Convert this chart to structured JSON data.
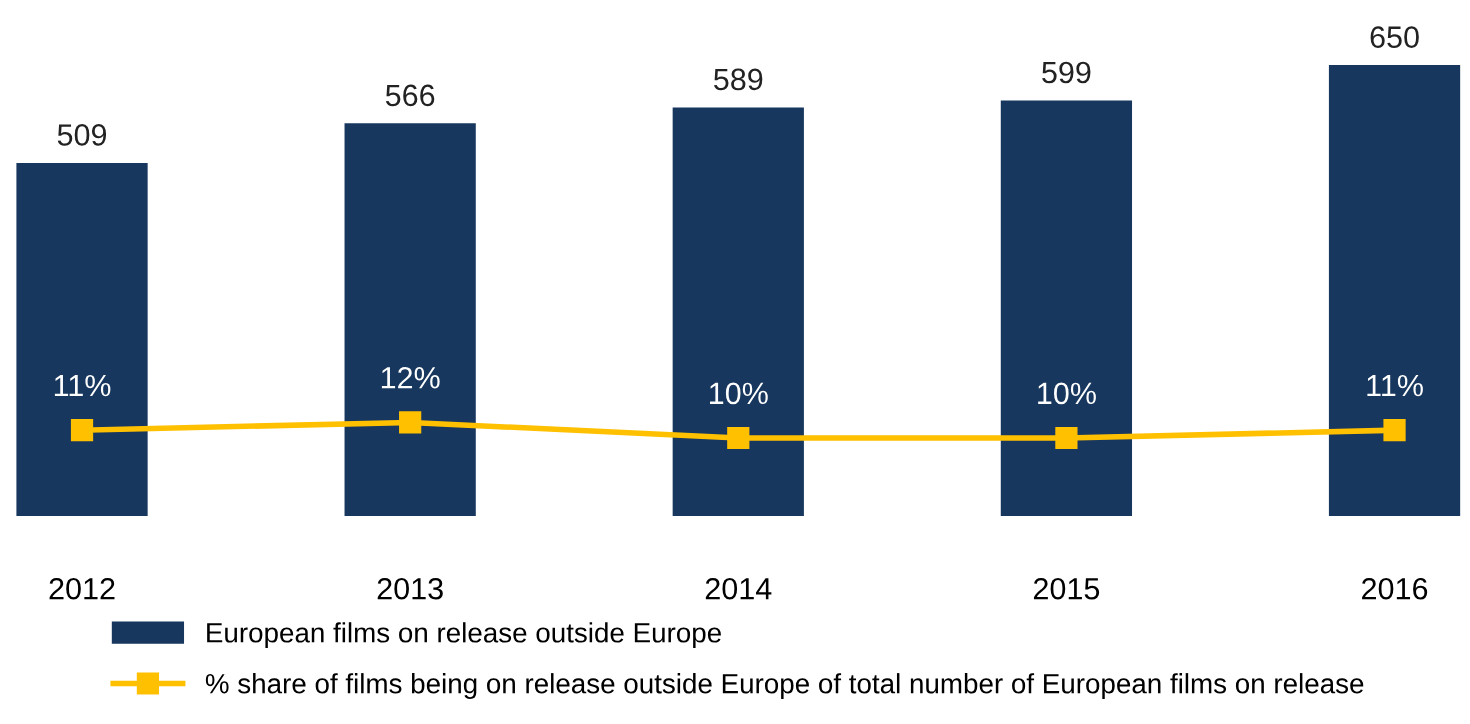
{
  "chart_data": {
    "type": "bar",
    "categories": [
      "2012",
      "2013",
      "2014",
      "2015",
      "2016"
    ],
    "series": [
      {
        "name": "European films on release outside Europe",
        "color": "#17375e",
        "values": [
          509,
          566,
          589,
          599,
          650
        ],
        "value_labels": [
          "509",
          "566",
          "589",
          "599",
          "650"
        ]
      },
      {
        "name": "% share of films being on release outside Europe of total number of European films on release",
        "type": "line",
        "axis": "y2",
        "color": "#ffc000",
        "marker": "square",
        "values": [
          11,
          12,
          10,
          10,
          11
        ],
        "value_labels": [
          "11%",
          "12%",
          "10%",
          "10%",
          "11%"
        ]
      }
    ],
    "grid": false,
    "legend": "bottom left",
    "tick_labels": "x"
  }
}
